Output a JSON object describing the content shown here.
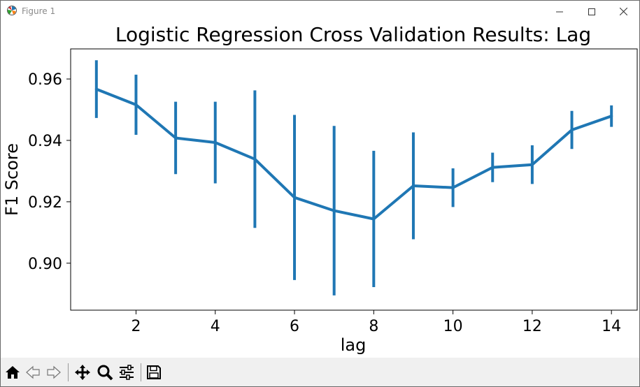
{
  "window": {
    "title": "Figure 1"
  },
  "toolbar": {
    "buttons": [
      {
        "name": "home-icon"
      },
      {
        "name": "back-icon"
      },
      {
        "name": "forward-icon"
      },
      {
        "name": "pan-icon"
      },
      {
        "name": "zoom-icon"
      },
      {
        "name": "configure-subplots-icon"
      },
      {
        "name": "save-icon"
      }
    ]
  },
  "chart_data": {
    "type": "line",
    "title": "Logistic Regression Cross Validation Results: Lag",
    "xlabel": "lag",
    "ylabel": "F1 Score",
    "xlim": [
      0.35,
      14.65
    ],
    "ylim": [
      0.8847,
      0.9698
    ],
    "x_ticks": [
      2,
      4,
      6,
      8,
      10,
      12,
      14
    ],
    "x_tick_labels": [
      "2",
      "4",
      "6",
      "8",
      "10",
      "12",
      "14"
    ],
    "y_ticks": [
      0.9,
      0.92,
      0.94,
      0.96
    ],
    "y_tick_labels": [
      "0.90",
      "0.92",
      "0.94",
      "0.96"
    ],
    "grid": false,
    "color": "#1f77b4",
    "series": [
      {
        "x": [
          1,
          2,
          3,
          4,
          5,
          6,
          7,
          8,
          9,
          10,
          11,
          12,
          13,
          14
        ],
        "y": [
          0.9567,
          0.9516,
          0.9408,
          0.9393,
          0.9339,
          0.9214,
          0.9171,
          0.9144,
          0.9252,
          0.9246,
          0.9312,
          0.9321,
          0.9434,
          0.9479
        ],
        "yerr": [
          0.0094,
          0.0098,
          0.0118,
          0.0133,
          0.0224,
          0.0269,
          0.0276,
          0.0222,
          0.0174,
          0.0063,
          0.0048,
          0.0063,
          0.0062,
          0.0035
        ]
      }
    ]
  }
}
